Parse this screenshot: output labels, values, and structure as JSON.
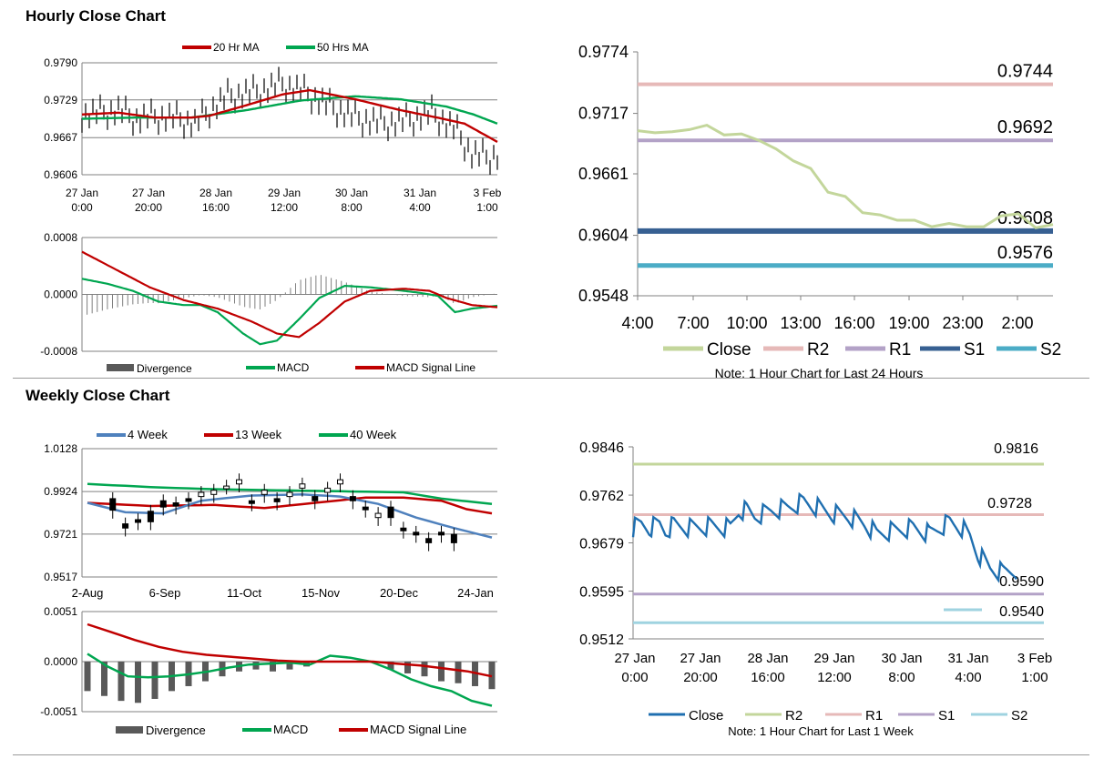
{
  "sections": {
    "hourly_title": "Hourly Close Chart",
    "weekly_title": "Weekly Close Chart"
  },
  "colors": {
    "red": "#c00000",
    "green": "#00a650",
    "blue": "#4f81bd",
    "r2": "#e6b9b8",
    "r1": "#b3a2c7",
    "s1": "#376092",
    "s2": "#4bacc6",
    "close_light": "#c3d69b",
    "close_blue": "#1f6fb0",
    "r2b": "#c3d69b",
    "r1b": "#e6b9b8",
    "s1b": "#b3a2c7",
    "s2b": "#9fd3e0",
    "gray": "#595959"
  },
  "chart_data": [
    {
      "id": "hourly_price",
      "type": "line",
      "title": "Hourly Close Chart",
      "legend": [
        "20 Hr MA",
        "50 Hrs MA"
      ],
      "x_tick_labels": [
        [
          "27 Jan",
          "0:00"
        ],
        [
          "27 Jan",
          "20:00"
        ],
        [
          "28 Jan",
          "16:00"
        ],
        [
          "29 Jan",
          "12:00"
        ],
        [
          "30 Jan",
          "8:00"
        ],
        [
          "31 Jan",
          "4:00"
        ],
        [
          "3 Feb",
          "1:00"
        ]
      ],
      "y_tick_labels": [
        "0.9790",
        "0.9729",
        "0.9667",
        "0.9606"
      ],
      "ylim": [
        0.9606,
        0.979
      ],
      "x_count": 160,
      "price_keypoints": [
        [
          0,
          0.9705
        ],
        [
          10,
          0.9708
        ],
        [
          20,
          0.9712
        ],
        [
          30,
          0.9697
        ],
        [
          40,
          0.9702
        ],
        [
          50,
          0.97
        ],
        [
          62,
          0.969
        ],
        [
          70,
          0.9712
        ],
        [
          80,
          0.9735
        ],
        [
          95,
          0.9742
        ],
        [
          110,
          0.9755
        ],
        [
          122,
          0.9742
        ],
        [
          135,
          0.972
        ],
        [
          150,
          0.97
        ],
        [
          165,
          0.969
        ],
        [
          178,
          0.9695
        ],
        [
          192,
          0.9708
        ],
        [
          205,
          0.968
        ],
        [
          214,
          0.964
        ],
        [
          222,
          0.9635
        ],
        [
          228,
          0.9638
        ]
      ],
      "ma20_keypoints": [
        [
          0,
          0.9705
        ],
        [
          20,
          0.9708
        ],
        [
          40,
          0.97
        ],
        [
          60,
          0.97
        ],
        [
          70,
          0.9703
        ],
        [
          90,
          0.972
        ],
        [
          110,
          0.9738
        ],
        [
          125,
          0.9745
        ],
        [
          150,
          0.973
        ],
        [
          175,
          0.9712
        ],
        [
          195,
          0.97
        ],
        [
          210,
          0.969
        ],
        [
          228,
          0.966
        ]
      ],
      "ma50_keypoints": [
        [
          0,
          0.9698
        ],
        [
          30,
          0.97
        ],
        [
          60,
          0.97
        ],
        [
          90,
          0.9712
        ],
        [
          120,
          0.9728
        ],
        [
          150,
          0.9735
        ],
        [
          175,
          0.973
        ],
        [
          200,
          0.9718
        ],
        [
          215,
          0.9705
        ],
        [
          228,
          0.969
        ]
      ]
    },
    {
      "id": "hourly_macd",
      "type": "line",
      "legend": [
        "Divergence",
        "MACD",
        "MACD Signal Line"
      ],
      "y_tick_labels": [
        "0.0008",
        "0.0000",
        "-0.0008"
      ],
      "ylim": [
        -0.0008,
        0.0008
      ],
      "macd_keypoints": [
        [
          0,
          0.00022
        ],
        [
          15,
          0.00015
        ],
        [
          30,
          5e-05
        ],
        [
          45,
          -0.0001
        ],
        [
          60,
          -0.00015
        ],
        [
          70,
          -0.00015
        ],
        [
          80,
          -0.00025
        ],
        [
          95,
          -0.00055
        ],
        [
          105,
          -0.0007
        ],
        [
          115,
          -0.00065
        ],
        [
          128,
          -0.00035
        ],
        [
          140,
          -5e-05
        ],
        [
          155,
          0.00012
        ],
        [
          170,
          0.0001
        ],
        [
          190,
          5e-05
        ],
        [
          200,
          2e-05
        ],
        [
          210,
          -2e-05
        ],
        [
          220,
          -0.00025
        ],
        [
          230,
          -0.0002
        ],
        [
          245,
          -0.00016
        ]
      ],
      "signal_keypoints": [
        [
          0,
          0.0006
        ],
        [
          20,
          0.00035
        ],
        [
          40,
          0.0001
        ],
        [
          60,
          -8e-05
        ],
        [
          80,
          -0.0002
        ],
        [
          100,
          -0.00038
        ],
        [
          115,
          -0.00055
        ],
        [
          128,
          -0.0006
        ],
        [
          140,
          -0.0004
        ],
        [
          155,
          -0.0001
        ],
        [
          170,
          5e-05
        ],
        [
          190,
          8e-05
        ],
        [
          205,
          5e-05
        ],
        [
          215,
          -5e-05
        ],
        [
          230,
          -0.00015
        ],
        [
          245,
          -0.00018
        ]
      ]
    },
    {
      "id": "hourly_pivots",
      "type": "line",
      "y_tick_labels": [
        "0.9774",
        "0.9717",
        "0.9661",
        "0.9604",
        "0.9548"
      ],
      "ylim": [
        0.9548,
        0.9774
      ],
      "x_tick_labels": [
        "4:00",
        "7:00",
        "10:00",
        "13:00",
        "16:00",
        "19:00",
        "23:00",
        "2:00"
      ],
      "close_values": [
        0.9701,
        0.9699,
        0.97,
        0.9702,
        0.9706,
        0.9697,
        0.9698,
        0.9692,
        0.9684,
        0.9673,
        0.9666,
        0.9644,
        0.964,
        0.9625,
        0.9623,
        0.9618,
        0.9618,
        0.9612,
        0.9615,
        0.9612,
        0.9612,
        0.9622,
        0.9624,
        0.9611,
        0.9614
      ],
      "levels": [
        {
          "name": "R2",
          "value": 0.9744,
          "label": "0.9744"
        },
        {
          "name": "R1",
          "value": 0.9692,
          "label": "0.9692"
        },
        {
          "name": "S1",
          "value": 0.9608,
          "label": "0.9608"
        },
        {
          "name": "S2",
          "value": 0.9576,
          "label": "0.9576"
        }
      ],
      "legend": [
        "Close",
        "R2",
        "R1",
        "S1",
        "S2"
      ],
      "note": "Note: 1 Hour Chart for Last 24 Hours"
    },
    {
      "id": "weekly_price",
      "type": "line",
      "title": "Weekly Close Chart",
      "legend": [
        "4 Week",
        "13 Week",
        "40 Week"
      ],
      "x_tick_labels": [
        "2-Aug",
        "6-Sep",
        "11-Oct",
        "15-Nov",
        "20-Dec",
        "24-Jan"
      ],
      "y_tick_labels": [
        "1.0128",
        "0.9924",
        "0.9721",
        "0.9517"
      ],
      "ylim": [
        0.9517,
        1.0128
      ],
      "candles": [
        [
          0.989,
          0.9835
        ],
        [
          0.977,
          0.975
        ],
        [
          0.979,
          0.978
        ],
        [
          0.983,
          0.978
        ],
        [
          0.988,
          0.985
        ],
        [
          0.987,
          0.9855
        ],
        [
          0.989,
          0.988
        ],
        [
          0.99,
          0.992
        ],
        [
          0.991,
          0.993
        ],
        [
          0.995,
          0.995
        ],
        [
          0.996,
          0.998
        ],
        [
          0.988,
          0.987
        ],
        [
          0.991,
          0.993
        ],
        [
          0.989,
          0.9875
        ],
        [
          0.99,
          0.992
        ],
        [
          0.994,
          0.996
        ],
        [
          0.99,
          0.988
        ],
        [
          0.992,
          0.994
        ],
        [
          0.996,
          0.998
        ],
        [
          0.99,
          0.988
        ],
        [
          0.985,
          0.984
        ],
        [
          0.98,
          0.982
        ],
        [
          0.985,
          0.98
        ],
        [
          0.975,
          0.974
        ],
        [
          0.973,
          0.972
        ],
        [
          0.97,
          0.968
        ],
        [
          0.973,
          0.972
        ],
        [
          0.972,
          0.968
        ]
      ],
      "w4_keypoints": [
        [
          0,
          0.987
        ],
        [
          3,
          0.9825
        ],
        [
          6,
          0.982
        ],
        [
          9,
          0.988
        ],
        [
          13,
          0.9905
        ],
        [
          17,
          0.991
        ],
        [
          20,
          0.99
        ],
        [
          23,
          0.9865
        ],
        [
          26,
          0.98
        ],
        [
          29,
          0.975
        ],
        [
          32,
          0.9705
        ]
      ],
      "w13_keypoints": [
        [
          0,
          0.987
        ],
        [
          5,
          0.9855
        ],
        [
          10,
          0.986
        ],
        [
          14,
          0.9845
        ],
        [
          18,
          0.987
        ],
        [
          22,
          0.9895
        ],
        [
          25,
          0.9895
        ],
        [
          28,
          0.988
        ],
        [
          30,
          0.984
        ],
        [
          32,
          0.982
        ]
      ],
      "w40_keypoints": [
        [
          0,
          0.996
        ],
        [
          5,
          0.9945
        ],
        [
          10,
          0.9935
        ],
        [
          15,
          0.993
        ],
        [
          20,
          0.9925
        ],
        [
          25,
          0.992
        ],
        [
          28,
          0.989
        ],
        [
          32,
          0.9865
        ]
      ]
    },
    {
      "id": "weekly_macd",
      "type": "bar",
      "legend": [
        "Divergence",
        "MACD",
        "MACD Signal Line"
      ],
      "y_tick_labels": [
        "0.0051",
        "0.0000",
        "-0.0051"
      ],
      "ylim": [
        -0.0051,
        0.0051
      ],
      "divergence": [
        -0.003,
        -0.0035,
        -0.004,
        -0.0042,
        -0.0038,
        -0.003,
        -0.0025,
        -0.002,
        -0.0015,
        -0.001,
        -0.0008,
        -0.001,
        -0.0008,
        -0.0005,
        0.0,
        0.0,
        0.0,
        0.0,
        -0.0008,
        -0.0012,
        -0.0015,
        -0.002,
        -0.0022,
        -0.0025,
        -0.0028
      ],
      "macd": [
        0.0008,
        -0.0005,
        -0.0015,
        -0.0016,
        -0.0015,
        -0.0013,
        -0.001,
        -0.0006,
        -0.0003,
        -0.0002,
        -0.0001,
        -0.0003,
        0.0006,
        0.0004,
        0.0,
        -0.0008,
        -0.0018,
        -0.0025,
        -0.003,
        -0.004,
        -0.0045
      ],
      "signal": [
        0.0038,
        0.003,
        0.0022,
        0.0015,
        0.001,
        0.0007,
        0.0005,
        0.0003,
        0.0001,
        0.0,
        0.0,
        0.0,
        0.0,
        -0.0002,
        -0.0004,
        -0.0007,
        -0.001,
        -0.0015
      ],
      "zero_label": "0.0000"
    },
    {
      "id": "weekly_pivots",
      "type": "line",
      "y_tick_labels": [
        "0.9846",
        "0.9762",
        "0.9679",
        "0.9595",
        "0.9512"
      ],
      "ylim": [
        0.9512,
        0.9846
      ],
      "x_tick_labels": [
        [
          "27 Jan",
          "0:00"
        ],
        [
          "27 Jan",
          "20:00"
        ],
        [
          "28 Jan",
          "16:00"
        ],
        [
          "29 Jan",
          "12:00"
        ],
        [
          "30 Jan",
          "8:00"
        ],
        [
          "31 Jan",
          "4:00"
        ],
        [
          "3 Feb",
          "1:00"
        ]
      ],
      "close_keypoints": [
        [
          0,
          0.9705
        ],
        [
          4,
          0.9712
        ],
        [
          8,
          0.9705
        ],
        [
          13,
          0.9712
        ],
        [
          16,
          0.97
        ],
        [
          20,
          0.971
        ],
        [
          28,
          0.9705
        ],
        [
          38,
          0.9708
        ],
        [
          48,
          0.9705
        ],
        [
          52,
          0.9735
        ],
        [
          56,
          0.9735
        ],
        [
          60,
          0.9725
        ],
        [
          68,
          0.9735
        ],
        [
          76,
          0.974
        ],
        [
          84,
          0.975
        ],
        [
          90,
          0.9742
        ],
        [
          98,
          0.973
        ],
        [
          106,
          0.9725
        ],
        [
          114,
          0.9712
        ],
        [
          120,
          0.9695
        ],
        [
          128,
          0.97
        ],
        [
          138,
          0.9705
        ],
        [
          146,
          0.9695
        ],
        [
          156,
          0.9715
        ],
        [
          162,
          0.9705
        ],
        [
          166,
          0.969
        ],
        [
          170,
          0.966
        ],
        [
          176,
          0.9635
        ],
        [
          182,
          0.9628
        ],
        [
          188,
          0.9632
        ]
      ],
      "close_len": 190,
      "levels": [
        {
          "name": "R2",
          "value": 0.9816,
          "label": "0.9816"
        },
        {
          "name": "R1",
          "value": 0.9728,
          "label": "0.9728"
        },
        {
          "name": "S1",
          "value": 0.959,
          "label": "0.9590"
        },
        {
          "name": "S2",
          "value": 0.954,
          "label": "0.9540"
        }
      ],
      "legend": [
        "Close",
        "R2",
        "R1",
        "S1",
        "S2"
      ],
      "note": "Note: 1 Hour Chart for Last 1 Week"
    }
  ]
}
